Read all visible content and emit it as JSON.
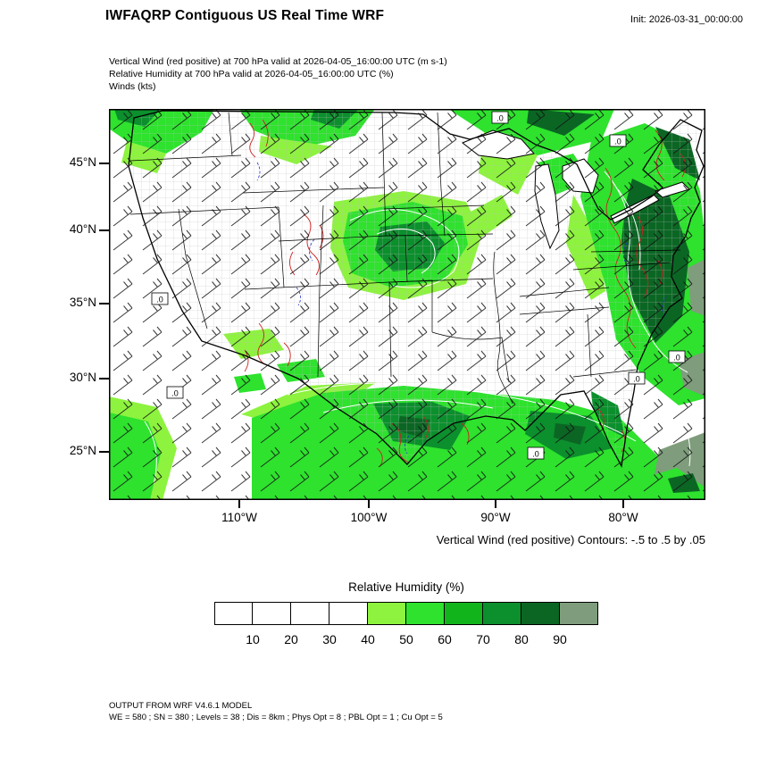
{
  "header": {
    "title": "IWFAQRP Contiguous US Real Time WRF",
    "init_label": "Init: 2026-03-31_00:00:00"
  },
  "subtitles": {
    "line1": "Vertical Wind (red positive) at 700 hPa valid at 2026-04-05_16:00:00 UTC   (m s-1)",
    "line2": "Relative Humidity at 700 hPa valid at 2026-04-05_16:00:00 UTC   (%)",
    "line3": "Winds   (kts)"
  },
  "map": {
    "lat_ticks": [
      "45°N",
      "40°N",
      "35°N",
      "30°N",
      "25°N"
    ],
    "lon_ticks": [
      "110°W",
      "100°W",
      "90°W",
      "80°W"
    ],
    "contour_note": "Vertical Wind (red positive) Contours: -.5 to .5 by .05",
    "zero_label": ".0"
  },
  "colorbar": {
    "title": "Relative Humidity  (%)",
    "tick_labels": [
      "10",
      "20",
      "30",
      "40",
      "50",
      "60",
      "70",
      "80",
      "90"
    ],
    "colors": [
      "#ffffff",
      "#ffffff",
      "#ffffff",
      "#ffffff",
      "#8df33e",
      "#2ee22e",
      "#12b41c",
      "#0c8f2d",
      "#0b6624",
      "#7f9d7c"
    ]
  },
  "footer": {
    "line1": "OUTPUT FROM WRF V4.6.1 MODEL",
    "line2": "WE = 580 ; SN = 380 ; Levels = 38 ; Dis = 8km ; Phys Opt = 8 ; PBL Opt = 1 ; Cu Opt = 5"
  },
  "chart_data": {
    "type": "heatmap",
    "title": "IWFAQRP Contiguous US Real Time WRF",
    "region": "Contiguous US",
    "init": "2026-03-31_00:00:00",
    "valid": "2026-04-05_16:00:00 UTC",
    "level_hPa": 700,
    "overlays": [
      {
        "field": "Vertical Wind",
        "units": "m s-1",
        "render": "contours",
        "positive_color": "red",
        "range": [
          -0.5,
          0.5
        ],
        "interval": 0.05
      },
      {
        "field": "Relative Humidity",
        "units": "%",
        "render": "filled",
        "bin_edges": [
          10,
          20,
          30,
          40,
          50,
          60,
          70,
          80,
          90
        ],
        "palette": [
          "#ffffff",
          "#ffffff",
          "#ffffff",
          "#ffffff",
          "#8df33e",
          "#2ee22e",
          "#12b41c",
          "#0c8f2d",
          "#0b6624",
          "#7f9d7c"
        ]
      },
      {
        "field": "Winds",
        "units": "kts",
        "render": "barbs"
      }
    ],
    "x_ticks": [
      "110°W",
      "100°W",
      "90°W",
      "80°W"
    ],
    "y_ticks": [
      "45°N",
      "40°N",
      "35°N",
      "30°N",
      "25°N"
    ],
    "model_notes": [
      "OUTPUT FROM WRF V4.6.1 MODEL",
      "WE = 580 ; SN = 380 ; Levels = 38 ; Dis = 8km ; Phys Opt = 8 ; PBL Opt = 1 ; Cu Opt = 5"
    ],
    "legend_position": "bottom"
  }
}
